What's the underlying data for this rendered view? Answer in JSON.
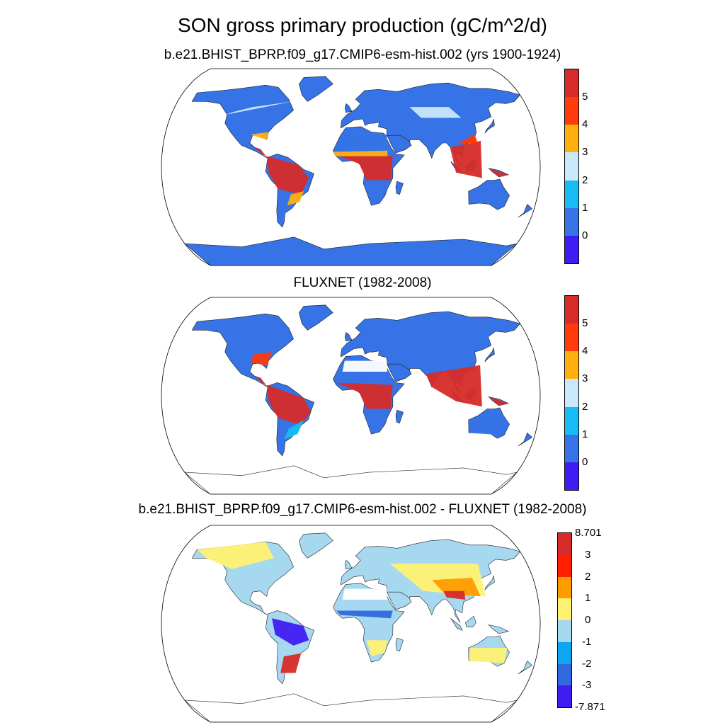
{
  "figure": {
    "title": "SON gross primary production (gC/m^2/d)"
  },
  "panels": [
    {
      "title": "b.e21.BHIST_BPRP.f09_g17.CMIP6-esm-hist.002 (yrs 1900-1924)",
      "colorbar": {
        "colors": [
          "#d62b28",
          "#ff3a0b",
          "#ffb00f",
          "#c9e8f9",
          "#18bcf5",
          "#3573e6",
          "#3f1cf2"
        ],
        "labels": [
          "5",
          "4",
          "3",
          "2",
          "1",
          "0"
        ]
      }
    },
    {
      "title": "FLUXNET (1982-2008)",
      "colorbar": {
        "colors": [
          "#d62b28",
          "#ff3a0b",
          "#ffb00f",
          "#c9e8f9",
          "#18bcf5",
          "#3573e6",
          "#3f1cf2"
        ],
        "labels": [
          "5",
          "4",
          "3",
          "2",
          "1",
          "0"
        ]
      }
    },
    {
      "title": "b.e21.BHIST_BPRP.f09_g17.CMIP6-esm-hist.002 - FLUXNET (1982-2008)",
      "colorbar": {
        "colors": [
          "#d62b28",
          "#ff1e00",
          "#ff9c00",
          "#fff272",
          "#a6d8f0",
          "#0fa5f0",
          "#3069e0",
          "#3f1cf2"
        ],
        "labels": [
          "8.701",
          "3",
          "2",
          "1",
          "0",
          "-1",
          "-2",
          "-3",
          "-7.871"
        ]
      }
    }
  ]
}
